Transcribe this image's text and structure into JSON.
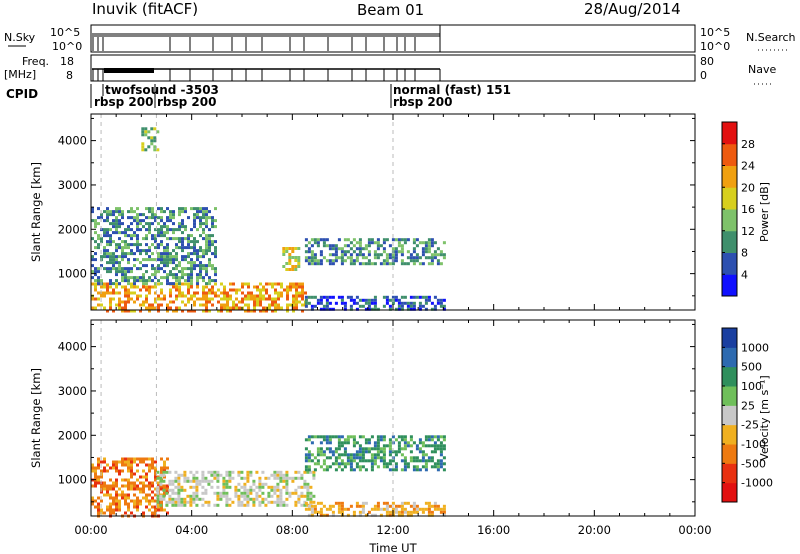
{
  "header": {
    "station": "Inuvik (fitACF)",
    "beam": "Beam 01",
    "date": "28/Aug/2014"
  },
  "status_panels": {
    "nsky_label": "N.Sky",
    "nsky_ticks": [
      "10^5",
      "10^0"
    ],
    "nsearch_label": "N.Search",
    "nsearch_ticks": [
      "10^5",
      "10^0"
    ],
    "freq_label_1": "Freq.",
    "freq_label_2": "[MHz]",
    "freq_ticks": [
      "18",
      "8"
    ],
    "nave_label": "Nave",
    "nave_ticks": [
      "80",
      "0"
    ],
    "cpid_label": "CPID",
    "cpid_entries": [
      {
        "text": "twofsound -3503",
        "row": 1
      },
      {
        "text": "rbsp 200",
        "row": 2
      },
      {
        "text": "rbsp 200",
        "row": 2
      },
      {
        "text": "normal (fast) 151",
        "row": 1
      },
      {
        "text": "rbsp 200",
        "row": 2
      }
    ]
  },
  "chart_data": [
    {
      "type": "heatmap",
      "panel": "power",
      "ylabel": "Slant Range [km]",
      "yticks": [
        1000,
        2000,
        3000,
        4000
      ],
      "ylim": [
        180,
        4600
      ],
      "xlim": [
        0,
        24
      ],
      "colorbar_label": "Power [dB]",
      "colorbar_ticks": [
        "4",
        "8",
        "12",
        "16",
        "20",
        "24",
        "28"
      ],
      "colorbar_colors": [
        "#1010ff",
        "#2d50b0",
        "#3f8f6c",
        "#7ec26a",
        "#d7cf1e",
        "#f0a010",
        "#ee5a0f",
        "#e21010"
      ],
      "data_extent_hours": [
        0.0,
        14.0
      ],
      "description_regions": [
        {
          "x": [
            0.0,
            8.5
          ],
          "y": [
            180,
            800
          ],
          "value": 22
        },
        {
          "x": [
            0.0,
            5.0
          ],
          "y": [
            800,
            2500
          ],
          "value": 10
        },
        {
          "x": [
            2.0,
            2.6
          ],
          "y": [
            3800,
            4300
          ],
          "value": 14
        },
        {
          "x": [
            7.6,
            8.2
          ],
          "y": [
            1100,
            1600
          ],
          "value": 20
        },
        {
          "x": [
            8.5,
            14.0
          ],
          "y": [
            1200,
            1800
          ],
          "value": 12
        },
        {
          "x": [
            8.5,
            14.0
          ],
          "y": [
            180,
            500
          ],
          "value": 6
        }
      ]
    },
    {
      "type": "heatmap",
      "panel": "velocity",
      "ylabel": "Slant Range [km]",
      "yticks": [
        1000,
        2000,
        3000,
        4000
      ],
      "ylim": [
        180,
        4600
      ],
      "xlim": [
        0,
        24
      ],
      "xticks": [
        "00:00",
        "04:00",
        "08:00",
        "12:00",
        "16:00",
        "20:00",
        "00:00"
      ],
      "xlabel": "Time UT",
      "colorbar_label": "Velocity [m s⁻¹]",
      "colorbar_ticks": [
        "1000",
        "500",
        "100",
        "25",
        "-25",
        "-100",
        "-500",
        "-1000"
      ],
      "colorbar_colors": [
        "#1a3fa0",
        "#2d6ab0",
        "#2f8f5c",
        "#6fbf5a",
        "#c8c8c8",
        "#f0b020",
        "#ee7a10",
        "#e83010",
        "#e21010"
      ],
      "data_extent_hours": [
        0.0,
        14.0
      ],
      "description_regions": [
        {
          "x": [
            0.0,
            3.0
          ],
          "y": [
            180,
            1500
          ],
          "value": -300
        },
        {
          "x": [
            2.6,
            8.8
          ],
          "y": [
            400,
            1200
          ],
          "value": 0
        },
        {
          "x": [
            8.5,
            14.0
          ],
          "y": [
            1200,
            2000
          ],
          "value": 150
        },
        {
          "x": [
            8.5,
            14.0
          ],
          "y": [
            180,
            500
          ],
          "value": -150
        }
      ]
    }
  ]
}
